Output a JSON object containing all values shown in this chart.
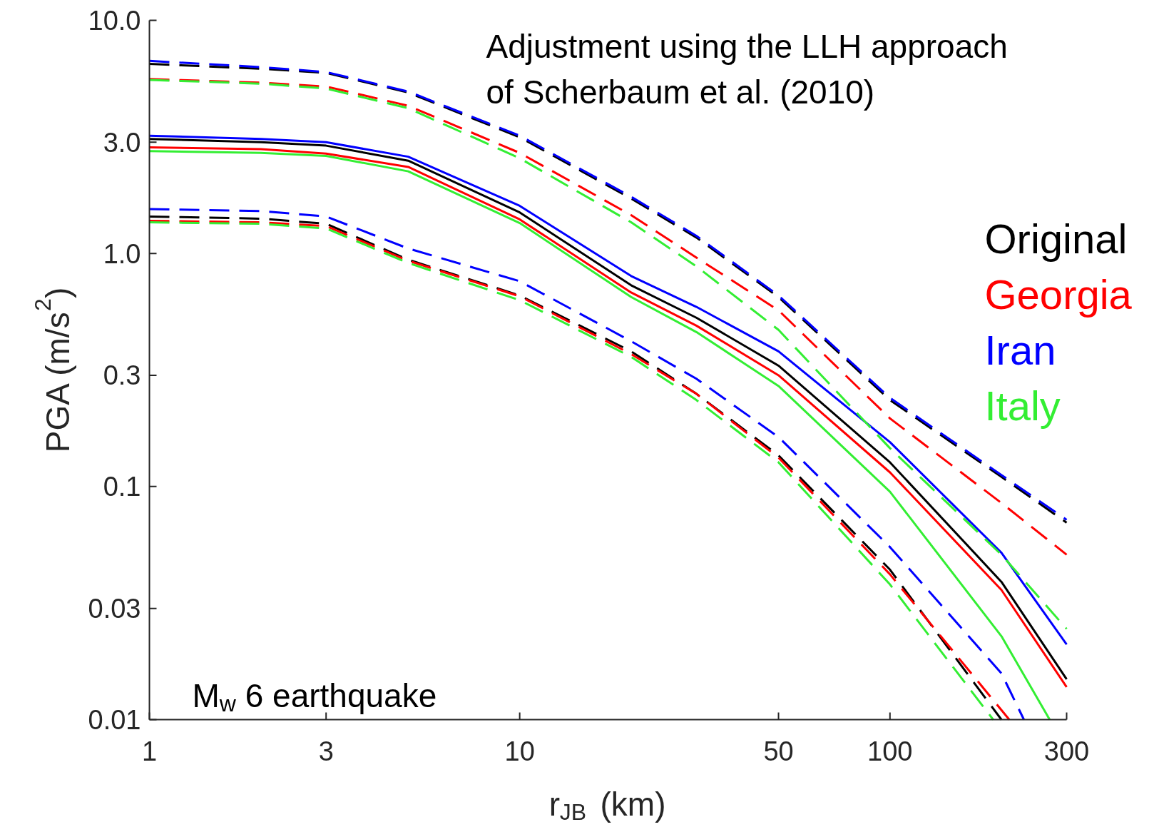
{
  "chart_data": {
    "type": "line",
    "xlabel": "r$_{JB}$ (km)",
    "ylabel": "PGA (m/s$^{2}$)",
    "log": "xy",
    "grid": false,
    "marker": "none",
    "xlim": [
      1,
      300
    ],
    "xticks": [
      1,
      3,
      10,
      50,
      100,
      300
    ],
    "ylim": [
      0.01,
      10
    ],
    "yticks": [
      0.01,
      0.03,
      0.1,
      0.3,
      {
        "value": 1,
        "label": "1.0"
      },
      {
        "value": 3,
        "label": "3.0"
      },
      {
        "value": 10,
        "label": "10.0"
      }
    ],
    "x": [
      1,
      2,
      3,
      5,
      10,
      20,
      30,
      50,
      100,
      200,
      300
    ],
    "series": [
      {
        "name": "Original",
        "color": "#000000",
        "line_style": "solid",
        "values": [
          3.1,
          3.0,
          2.9,
          2.5,
          1.5,
          0.73,
          0.53,
          0.33,
          0.127,
          0.039,
          0.0149
        ]
      },
      {
        "name": "Georgia",
        "color": "#ff0000",
        "line_style": "solid",
        "values": [
          2.85,
          2.8,
          2.68,
          2.35,
          1.4,
          0.68,
          0.49,
          0.3,
          0.115,
          0.036,
          0.0138
        ]
      },
      {
        "name": "Iran",
        "color": "#0000ff",
        "line_style": "solid",
        "values": [
          3.2,
          3.1,
          3.0,
          2.6,
          1.6,
          0.8,
          0.59,
          0.38,
          0.155,
          0.052,
          0.021
        ]
      },
      {
        "name": "Italy",
        "color": "#33ee33",
        "line_style": "solid",
        "x": [
          1,
          2,
          3,
          5,
          10,
          20,
          30,
          50,
          100,
          200,
          270
        ],
        "values": [
          2.75,
          2.7,
          2.62,
          2.25,
          1.35,
          0.65,
          0.46,
          0.27,
          0.095,
          0.0228,
          0.01
        ]
      },
      {
        "color": "#000000",
        "line_style": "dashed",
        "values": [
          6.5,
          6.2,
          5.95,
          4.9,
          3.15,
          1.72,
          1.17,
          0.65,
          0.235,
          0.11,
          0.07
        ]
      },
      {
        "color": "#ff0000",
        "line_style": "dashed",
        "values": [
          5.6,
          5.4,
          5.2,
          4.3,
          2.7,
          1.46,
          0.96,
          0.57,
          0.196,
          0.085,
          0.051
        ]
      },
      {
        "color": "#0000ff",
        "line_style": "dashed",
        "values": [
          6.7,
          6.3,
          6.0,
          4.95,
          3.2,
          1.75,
          1.19,
          0.66,
          0.24,
          0.112,
          0.072
        ]
      },
      {
        "color": "#33ee33",
        "line_style": "dashed",
        "values": [
          5.55,
          5.35,
          5.1,
          4.2,
          2.56,
          1.36,
          0.88,
          0.47,
          0.146,
          0.051,
          0.0245
        ]
      },
      {
        "color": "#000000",
        "line_style": "dashed",
        "x": [
          1,
          2,
          3,
          5,
          10,
          20,
          30,
          50,
          100,
          200
        ],
        "values": [
          1.44,
          1.41,
          1.34,
          0.94,
          0.66,
          0.38,
          0.25,
          0.136,
          0.044,
          0.01
        ]
      },
      {
        "color": "#ff0000",
        "line_style": "dashed",
        "x": [
          1,
          2,
          3,
          5,
          10,
          20,
          30,
          50,
          100,
          210
        ],
        "values": [
          1.38,
          1.36,
          1.31,
          0.93,
          0.655,
          0.37,
          0.25,
          0.133,
          0.042,
          0.01
        ]
      },
      {
        "color": "#0000ff",
        "line_style": "dashed",
        "x": [
          1,
          2,
          3,
          5,
          10,
          20,
          30,
          50,
          100,
          200,
          230
        ],
        "values": [
          1.55,
          1.52,
          1.44,
          1.05,
          0.76,
          0.42,
          0.29,
          0.163,
          0.055,
          0.0158,
          0.01
        ]
      },
      {
        "color": "#33ee33",
        "line_style": "dashed",
        "x": [
          1,
          2,
          3,
          5,
          10,
          20,
          30,
          50,
          100,
          190
        ],
        "values": [
          1.36,
          1.34,
          1.28,
          0.91,
          0.63,
          0.36,
          0.235,
          0.127,
          0.038,
          0.01
        ]
      }
    ],
    "annotations": [
      "Adjustment using the LLH approach\nof Scherbaum et al. (2010)",
      "M$_{w}$ 6 earthquake"
    ]
  }
}
